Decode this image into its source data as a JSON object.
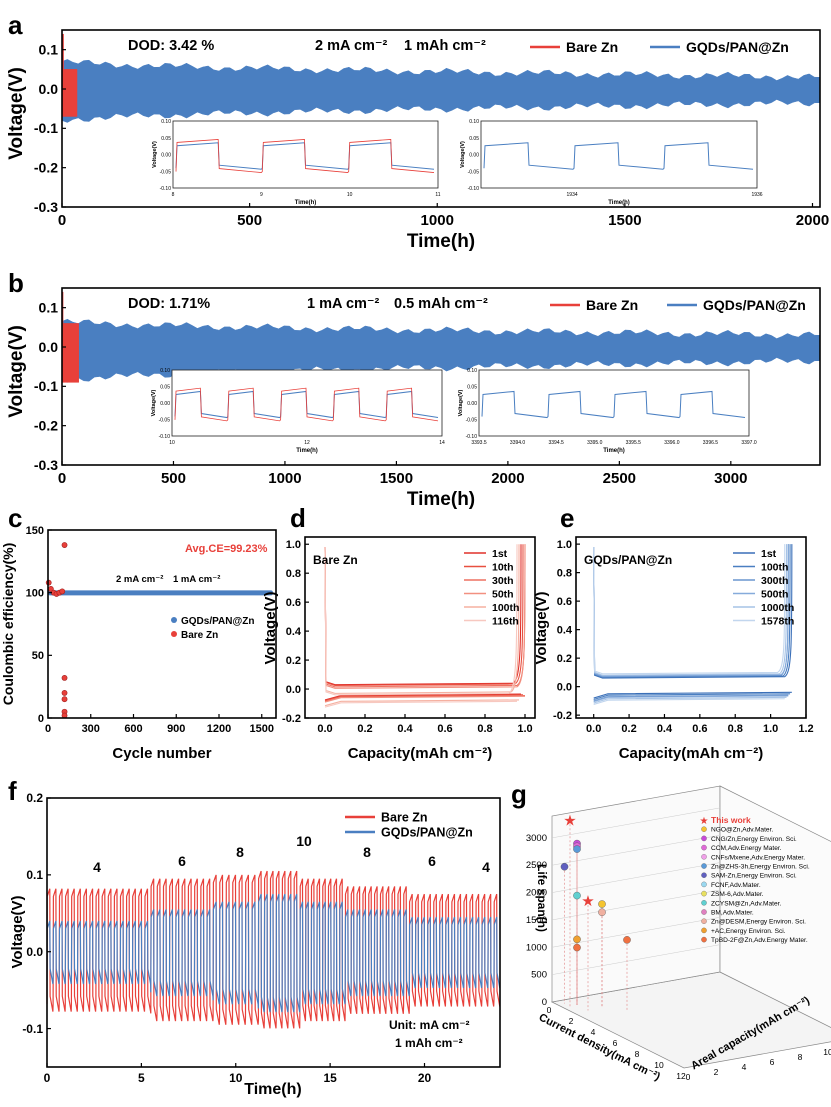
{
  "colors": {
    "bare": "#e8403a",
    "gqd": "#4a7fc1",
    "gqd_light": "#9fbfe6",
    "grid": "#b00000"
  },
  "chart_data": [
    {
      "id": "a",
      "type": "line",
      "panel_label": "a",
      "xlabel": "Time(h)",
      "ylabel": "Voltage(V)",
      "xlim": [
        0,
        2020
      ],
      "ylim": [
        -0.3,
        0.15
      ],
      "xticks": [
        "0",
        "500",
        "1000",
        "1500",
        "2000"
      ],
      "xtick_values": [
        0,
        500,
        1000,
        1500,
        2000
      ],
      "yticks": [
        "0.1",
        "0.0",
        "-0.1",
        "-0.2",
        "-0.3"
      ],
      "ytick_values": [
        0.1,
        0.0,
        -0.1,
        -0.2,
        -0.3
      ],
      "annotations": [
        "DOD: 3.42 %",
        "2 mA cm⁻²",
        "1 mAh cm⁻²"
      ],
      "legend": [
        "Bare Zn",
        "GQDs/PAN@Zn"
      ],
      "series": [
        {
          "name": "Bare Zn",
          "x_range": [
            0,
            40
          ],
          "envelope": [
            0.05,
            -0.07
          ]
        },
        {
          "name": "GQDs/PAN@Zn",
          "x_range": [
            0,
            2020
          ],
          "envelope_start": [
            0.07,
            -0.08
          ],
          "envelope_end": [
            0.03,
            -0.035
          ]
        }
      ],
      "insets": [
        {
          "xlim": [
            8,
            11
          ],
          "ylim": [
            -0.1,
            0.1
          ],
          "xticks": [
            "8",
            "9",
            "10",
            "11"
          ],
          "yticks": [
            "0.10",
            "0.05",
            "0.00",
            "-0.05",
            "-0.10"
          ],
          "xlabel": "Time(h)",
          "ylabel": "Voltage(V)",
          "cycles": 3,
          "series": [
            "Bare Zn",
            "GQDs/PAN@Zn"
          ]
        },
        {
          "xlim": [
            1933,
            1936
          ],
          "ylim": [
            -0.1,
            0.1
          ],
          "xticks": [
            "1934",
            "1936"
          ],
          "yticks": [
            "0.10",
            "0.05",
            "0.00",
            "-0.05",
            "-0.10"
          ],
          "xlabel": "Time(h)",
          "ylabel": "Voltage(V)",
          "cycles": 3,
          "series": [
            "GQDs/PAN@Zn"
          ]
        }
      ]
    },
    {
      "id": "b",
      "type": "line",
      "panel_label": "b",
      "xlabel": "Time(h)",
      "ylabel": "Voltage(V)",
      "xlim": [
        0,
        3400
      ],
      "ylim": [
        -0.3,
        0.15
      ],
      "xticks": [
        "0",
        "500",
        "1000",
        "1500",
        "2000",
        "2500",
        "3000"
      ],
      "xtick_values": [
        0,
        500,
        1000,
        1500,
        2000,
        2500,
        3000
      ],
      "yticks": [
        "0.1",
        "0.0",
        "-0.1",
        "-0.2",
        "-0.3"
      ],
      "ytick_values": [
        0.1,
        0.0,
        -0.1,
        -0.2,
        -0.3
      ],
      "annotations": [
        "DOD: 1.71%",
        "1 mA cm⁻²",
        "0.5 mAh cm⁻²"
      ],
      "legend": [
        "Bare Zn",
        "GQDs/PAN@Zn"
      ],
      "series": [
        {
          "name": "Bare Zn",
          "x_range": [
            0,
            75
          ],
          "envelope": [
            0.06,
            -0.09
          ]
        },
        {
          "name": "GQDs/PAN@Zn",
          "x_range": [
            0,
            3400
          ],
          "envelope_start": [
            0.065,
            -0.085
          ],
          "envelope_end": [
            0.03,
            -0.035
          ]
        }
      ],
      "insets": [
        {
          "xlim": [
            10,
            14
          ],
          "ylim": [
            -0.1,
            0.1
          ],
          "xticks": [
            "10",
            "12",
            "14"
          ],
          "yticks": [
            "0.10",
            "0.05",
            "0.00",
            "-0.05",
            "-0.10"
          ],
          "xlabel": "Time(h)",
          "ylabel": "Voltage(V)",
          "cycles": 5,
          "series": [
            "Bare Zn",
            "GQDs/PAN@Zn"
          ]
        },
        {
          "xlim": [
            3393,
            3397
          ],
          "ylim": [
            -0.1,
            0.1
          ],
          "xticks": [
            "3393.5",
            "3394.0",
            "3394.5",
            "3395.0",
            "3395.5",
            "3396.0",
            "3396.5",
            "3397.0"
          ],
          "yticks": [
            "0.10",
            "0.05",
            "0.00",
            "-0.05",
            "-0.10"
          ],
          "xlabel": "Time(h)",
          "ylabel": "Voltage(V)",
          "cycles": 4,
          "series": [
            "GQDs/PAN@Zn"
          ]
        }
      ]
    },
    {
      "id": "c",
      "type": "scatter",
      "panel_label": "c",
      "xlabel": "Cycle number",
      "ylabel": "Coulombic efficiency(%)",
      "xlim": [
        0,
        1600
      ],
      "ylim": [
        0,
        150
      ],
      "xticks": [
        "0",
        "300",
        "600",
        "900",
        "1200",
        "1500"
      ],
      "xtick_values": [
        0,
        300,
        600,
        900,
        1200,
        1500
      ],
      "yticks": [
        "0",
        "50",
        "100",
        "150"
      ],
      "ytick_values": [
        0,
        50,
        100,
        150
      ],
      "annotations": [
        "Avg.CE=99.23%",
        "2 mA cm⁻²",
        "1 mA cm⁻²"
      ],
      "legend": [
        "GQDs/PAN@Zn",
        "Bare Zn"
      ],
      "series": [
        {
          "name": "GQDs/PAN@Zn",
          "x": [
            0,
            1578
          ],
          "value": 99.8
        },
        {
          "name": "Bare Zn",
          "points": [
            [
              5,
              108
            ],
            [
              20,
              103
            ],
            [
              40,
              100
            ],
            [
              60,
              99
            ],
            [
              80,
              100
            ],
            [
              100,
              101
            ],
            [
              116,
              138
            ],
            [
              116,
              32
            ],
            [
              116,
              20
            ],
            [
              116,
              15
            ],
            [
              116,
              5
            ],
            [
              116,
              2
            ]
          ]
        }
      ]
    },
    {
      "id": "d",
      "type": "line",
      "panel_label": "d",
      "xlabel": "Capacity(mAh cm⁻²)",
      "ylabel": "Voltage(V)",
      "xlim": [
        -0.1,
        1.05
      ],
      "ylim": [
        -0.2,
        1.05
      ],
      "xticks": [
        "0.0",
        "0.2",
        "0.4",
        "0.6",
        "0.8",
        "1.0"
      ],
      "xtick_values": [
        0,
        0.2,
        0.4,
        0.6,
        0.8,
        1.0
      ],
      "yticks": [
        "1.0",
        "0.8",
        "0.6",
        "0.4",
        "0.2",
        "0.0",
        "-0.2"
      ],
      "ytick_values": [
        1.0,
        0.8,
        0.6,
        0.4,
        0.2,
        0.0,
        -0.2
      ],
      "annotations": [
        "Bare Zn"
      ],
      "legend": [
        "1st",
        "10th",
        "30th",
        "50th",
        "100th",
        "116th"
      ],
      "series": [
        {
          "name": "1st",
          "plateau": 0.03,
          "strip": -0.045,
          "cap": 0.98
        },
        {
          "name": "10th",
          "plateau": 0.025,
          "strip": -0.05,
          "cap": 0.99
        },
        {
          "name": "30th",
          "plateau": 0.015,
          "strip": -0.055,
          "cap": 1.0
        },
        {
          "name": "50th",
          "plateau": 0.005,
          "strip": -0.06,
          "cap": 1.0
        },
        {
          "name": "100th",
          "plateau": -0.03,
          "strip": -0.085,
          "cap": 0.97
        },
        {
          "name": "116th",
          "plateau": -0.04,
          "strip": -0.095,
          "cap": 0.96
        }
      ]
    },
    {
      "id": "e",
      "type": "line",
      "panel_label": "e",
      "xlabel": "Capacity(mAh cm⁻²)",
      "ylabel": "Voltage(V)",
      "xlim": [
        -0.1,
        1.2
      ],
      "ylim": [
        -0.22,
        1.05
      ],
      "xticks": [
        "0.0",
        "0.2",
        "0.4",
        "0.6",
        "0.8",
        "1.0",
        "1.2"
      ],
      "xtick_values": [
        0,
        0.2,
        0.4,
        0.6,
        0.8,
        1.0,
        1.2
      ],
      "yticks": [
        "1.0",
        "0.8",
        "0.6",
        "0.4",
        "0.2",
        "0.0",
        "-0.2"
      ],
      "ytick_values": [
        1.0,
        0.8,
        0.6,
        0.4,
        0.2,
        0.0,
        -0.2
      ],
      "annotations": [
        "GQDs/PAN@Zn"
      ],
      "legend": [
        "1st",
        "100th",
        "300th",
        "500th",
        "1000th",
        "1578th"
      ],
      "series": [
        {
          "name": "1st",
          "plateau": 0.06,
          "strip": -0.05,
          "cap": 1.12
        },
        {
          "name": "100th",
          "plateau": 0.065,
          "strip": -0.06,
          "cap": 1.11
        },
        {
          "name": "300th",
          "plateau": 0.07,
          "strip": -0.07,
          "cap": 1.1
        },
        {
          "name": "500th",
          "plateau": 0.075,
          "strip": -0.075,
          "cap": 1.1
        },
        {
          "name": "1000th",
          "plateau": 0.08,
          "strip": -0.085,
          "cap": 1.09
        },
        {
          "name": "1578th",
          "plateau": 0.09,
          "strip": -0.095,
          "cap": 1.08
        }
      ]
    },
    {
      "id": "f",
      "type": "line",
      "panel_label": "f",
      "xlabel": "Time(h)",
      "ylabel": "Voltage(V)",
      "xlim": [
        0,
        24
      ],
      "ylim": [
        -0.15,
        0.2
      ],
      "xticks": [
        "0",
        "5",
        "10",
        "15",
        "20"
      ],
      "xtick_values": [
        0,
        5,
        10,
        15,
        20
      ],
      "yticks": [
        "0.2",
        "0.1",
        "0.0",
        "-0.1"
      ],
      "ytick_values": [
        0.2,
        0.1,
        0.0,
        -0.1
      ],
      "annotations": [
        "4",
        "6",
        "8",
        "10",
        "8",
        "6",
        "4",
        "Unit: mA cm⁻²",
        "1 mAh cm⁻²"
      ],
      "legend": [
        "Bare Zn",
        "GQDs/PAN@Zn"
      ],
      "rate_steps": [
        {
          "current": 4,
          "t": [
            0,
            5.5
          ],
          "bare": 0.082,
          "gqd": 0.04
        },
        {
          "current": 6,
          "t": [
            5.5,
            8.8
          ],
          "bare": 0.095,
          "gqd": 0.055
        },
        {
          "current": 8,
          "t": [
            8.8,
            11.2
          ],
          "bare": 0.1,
          "gqd": 0.065
        },
        {
          "current": 10,
          "t": [
            11.2,
            13.4
          ],
          "bare": 0.105,
          "gqd": 0.075
        },
        {
          "current": 8,
          "t": [
            13.4,
            15.8
          ],
          "bare": 0.095,
          "gqd": 0.065
        },
        {
          "current": 6,
          "t": [
            15.8,
            19.2
          ],
          "bare": 0.085,
          "gqd": 0.055
        },
        {
          "current": 4,
          "t": [
            19.2,
            24
          ],
          "bare": 0.075,
          "gqd": 0.045
        }
      ]
    },
    {
      "id": "g",
      "type": "scatter",
      "panel_label": "g",
      "xlabel": "Current density(mA cm⁻²)",
      "ylabel": "Life span(h)",
      "zlabel": "Areal capacity(mAh cm⁻²)",
      "ylim": [
        0,
        3400
      ],
      "yticks": [
        "3000",
        "2500",
        "2000",
        "1500",
        "1000",
        "500",
        "0"
      ],
      "ytick_values": [
        3000,
        2500,
        2000,
        1500,
        1000,
        500,
        0
      ],
      "xticks": [
        "0",
        "2",
        "4",
        "6",
        "8",
        "10",
        "12"
      ],
      "zticks": [
        "0",
        "2",
        "4",
        "6",
        "8",
        "10",
        "12"
      ],
      "legend": [
        {
          "label": "This work",
          "color": "#e8403a",
          "marker": "star"
        },
        {
          "label": "NGO@Zn,Adv.Mater.",
          "color": "#f4c430"
        },
        {
          "label": "CNG/Zn,Energy Environ. Sci.",
          "color": "#c84bd8"
        },
        {
          "label": "CCM,Adv.Energy Mater.",
          "color": "#e06ad8"
        },
        {
          "label": "CNFs/Mxene,Adv.Energy Mater.",
          "color": "#f0a0e8"
        },
        {
          "label": "Zn@ZHS-3h,Energy Environ. Sci.",
          "color": "#5a9ad8"
        },
        {
          "label": "SAM-Zn,Energy Environ. Sci.",
          "color": "#6060c0"
        },
        {
          "label": "FCNF,Adv.Mater.",
          "color": "#9ad8f0"
        },
        {
          "label": "ZSM-6,Adv.Mater.",
          "color": "#e8e060"
        },
        {
          "label": "ZCYSM@Zn,Adv.Mater.",
          "color": "#60d0d0"
        },
        {
          "label": "BM,Adv.Mater.",
          "color": "#e080c0"
        },
        {
          "label": "Zn@DESM,Energy Environ. Sci.",
          "color": "#f0b0a0"
        },
        {
          "label": "+AC,Energy Environ. Sci.",
          "color": "#f0a030"
        },
        {
          "label": "TpBD-2F@Zn,Adv.Energy Mater.",
          "color": "#f07040"
        }
      ],
      "points": [
        {
          "label": "This work",
          "current": 1,
          "life": 3400,
          "cap": 0.5
        },
        {
          "label": "This work",
          "current": 2,
          "life": 2000,
          "cap": 1
        },
        {
          "label": "NGO@Zn,Adv.Mater.",
          "current": 2,
          "life": 1900,
          "cap": 2
        },
        {
          "label": "CNG/Zn,Energy Environ. Sci.",
          "current": 1,
          "life": 2950,
          "cap": 1
        },
        {
          "label": "CCM,Adv.Energy Mater.",
          "current": 1,
          "life": 2900,
          "cap": 1
        },
        {
          "label": "Zn@ZHS-3h,Energy Environ. Sci.",
          "current": 1,
          "life": 2850,
          "cap": 1
        },
        {
          "label": "SAM-Zn,Energy Environ. Sci.",
          "current": 0.5,
          "life": 2500,
          "cap": 0.5
        },
        {
          "label": "ZCYSM@Zn,Adv.Mater.",
          "current": 1,
          "life": 2000,
          "cap": 1
        },
        {
          "label": "+AC,Energy Environ. Sci.",
          "current": 1,
          "life": 1200,
          "cap": 1
        },
        {
          "label": "TpBD-2F@Zn,Adv.Energy Mater.",
          "current": 1,
          "life": 1050,
          "cap": 1
        },
        {
          "label": "Zn@DESM,Energy Environ. Sci.",
          "current": 2,
          "life": 1750,
          "cap": 2
        },
        {
          "label": "TpBD-2F@Zn,Adv.Energy Mater.",
          "current": 3,
          "life": 1300,
          "cap": 3
        }
      ]
    }
  ]
}
